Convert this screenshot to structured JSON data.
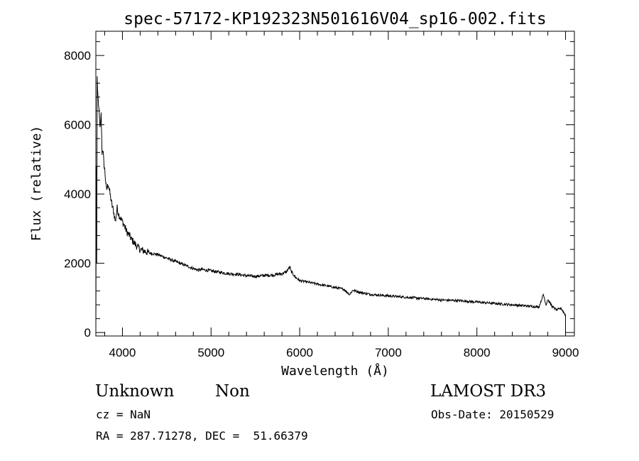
{
  "chart_data": {
    "type": "line",
    "title": "spec-57172-KP192323N501616V04_sp16-002.fits",
    "xlabel": "Wavelength (Å)",
    "ylabel": "Flux (relative)",
    "xlim": [
      3700,
      9100
    ],
    "ylim": [
      -100,
      8700
    ],
    "x_ticks": [
      4000,
      5000,
      6000,
      7000,
      8000,
      9000
    ],
    "y_ticks": [
      0,
      2000,
      4000,
      6000,
      8000
    ],
    "grid": false,
    "series": [
      {
        "x": [
          3700,
          3705,
          3710,
          3715,
          3720,
          3730,
          3740,
          3750,
          3760,
          3770,
          3780,
          3790,
          3800,
          3820,
          3840,
          3860,
          3880,
          3900,
          3920,
          3940,
          3960,
          3980,
          4000,
          4020,
          4050,
          4080,
          4100,
          4130,
          4160,
          4200,
          4250,
          4300,
          4340,
          4400,
          4500,
          4600,
          4700,
          4800,
          4860,
          4900,
          5000,
          5100,
          5200,
          5300,
          5400,
          5500,
          5600,
          5700,
          5800,
          5850,
          5890,
          5900,
          5950,
          6000,
          6100,
          6200,
          6300,
          6400,
          6500,
          6563,
          6600,
          6700,
          6800,
          6900,
          7000,
          7100,
          7200,
          7300,
          7400,
          7500,
          7600,
          7700,
          7800,
          7900,
          8000,
          8100,
          8200,
          8300,
          8400,
          8500,
          8600,
          8700,
          8750,
          8780,
          8800,
          8850,
          8900,
          8950,
          9000
        ],
        "y": [
          0,
          4800,
          2000,
          7400,
          7000,
          6600,
          6200,
          5900,
          6300,
          5200,
          5300,
          4900,
          4700,
          4100,
          4300,
          4000,
          3700,
          3500,
          3200,
          3600,
          3400,
          3300,
          3200,
          3100,
          2900,
          2800,
          2700,
          2600,
          2500,
          2400,
          2350,
          2300,
          2280,
          2250,
          2150,
          2050,
          1950,
          1850,
          1800,
          1820,
          1780,
          1740,
          1700,
          1680,
          1640,
          1620,
          1650,
          1660,
          1700,
          1750,
          1900,
          1780,
          1600,
          1500,
          1450,
          1400,
          1350,
          1300,
          1250,
          1100,
          1220,
          1150,
          1100,
          1080,
          1060,
          1040,
          1020,
          1000,
          980,
          960,
          940,
          930,
          920,
          900,
          880,
          860,
          840,
          820,
          800,
          780,
          760,
          740,
          1100,
          800,
          960,
          750,
          650,
          700,
          500
        ]
      }
    ]
  },
  "info": {
    "object_class": "Unknown",
    "subclass": "Non",
    "survey": "LAMOST DR3",
    "cz": "cz = NaN",
    "obs_date": "Obs-Date: 20150529",
    "coords": "RA = 287.71278, DEC =  51.66379"
  }
}
